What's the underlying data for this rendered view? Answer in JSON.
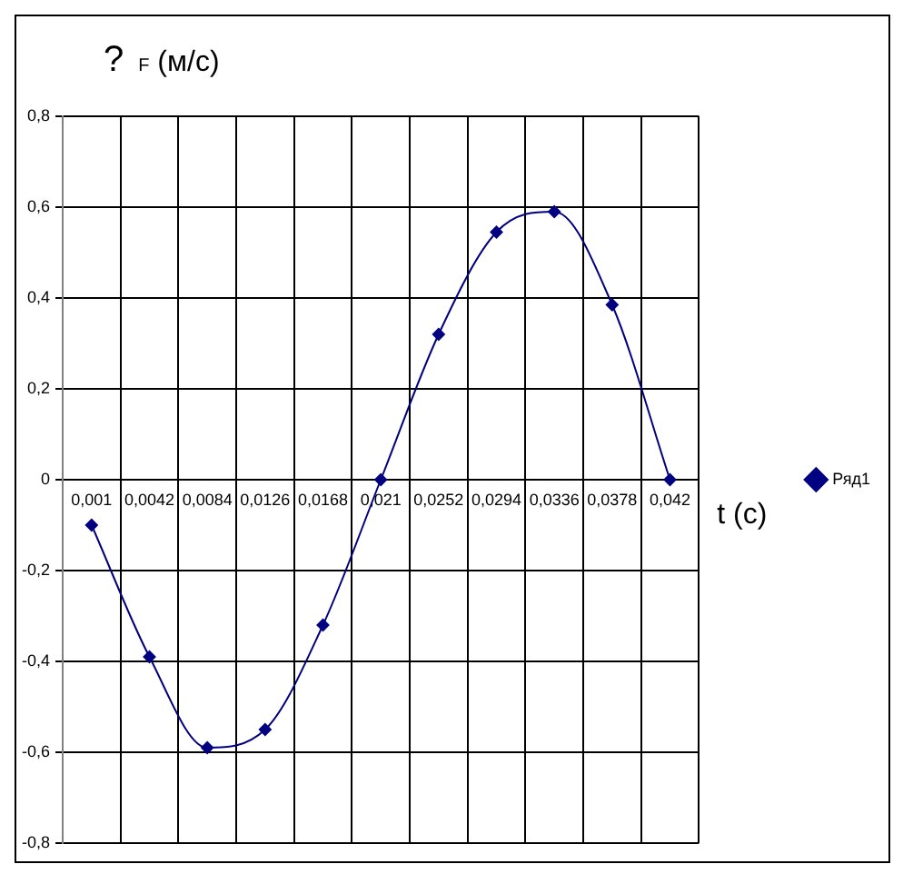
{
  "chart_data": {
    "type": "line",
    "ylabel": "? $_{F}$ (м/с)",
    "xlabel": "t (с)",
    "categories": [
      "0,001",
      "0,0042",
      "0,0084",
      "0,0126",
      "0,0168",
      "0,021",
      "0,0252",
      "0,0294",
      "0,0336",
      "0,0378",
      "0,042"
    ],
    "series": [
      {
        "name": "Ряд1",
        "color": "#000080",
        "values": [
          -0.1,
          -0.39,
          -0.59,
          -0.55,
          -0.32,
          0,
          0.32,
          0.545,
          0.59,
          0.385,
          0
        ]
      }
    ],
    "ylim": [
      -0.8,
      0.8
    ],
    "yticks": [
      {
        "value": -0.8,
        "label": "-0,8"
      },
      {
        "value": -0.6,
        "label": "-0,6"
      },
      {
        "value": -0.4,
        "label": "-0,4"
      },
      {
        "value": -0.2,
        "label": "-0,2"
      },
      {
        "value": 0,
        "label": "0"
      },
      {
        "value": 0.2,
        "label": "0,2"
      },
      {
        "value": 0.4,
        "label": "0,4"
      },
      {
        "value": 0.6,
        "label": "0,6"
      },
      {
        "value": 0.8,
        "label": "0,8"
      }
    ],
    "grid": true,
    "legend": "right",
    "marker": "diamond",
    "line_style": "solid"
  }
}
